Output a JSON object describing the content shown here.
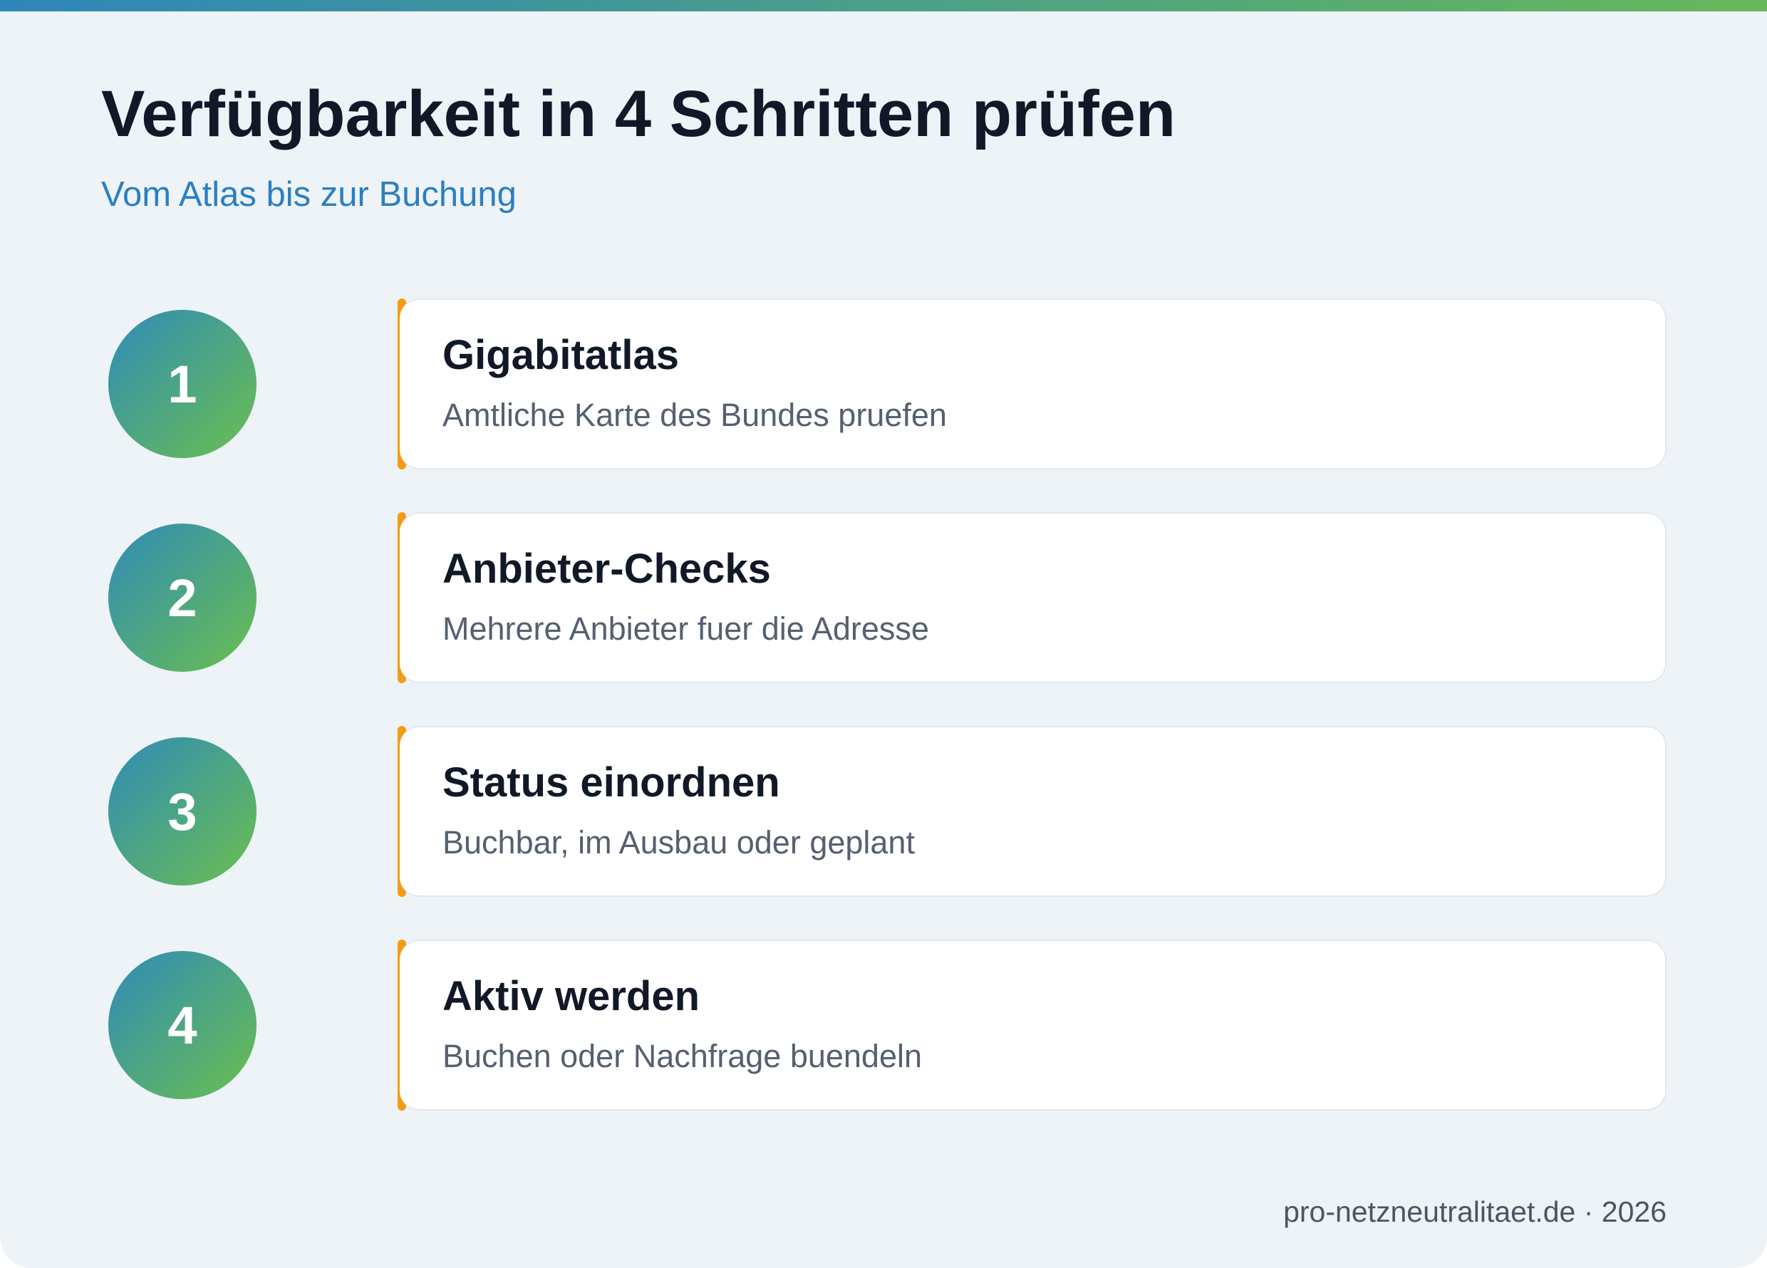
{
  "header": {
    "title": "Verfügbarkeit in 4 Schritten prüfen",
    "subtitle": "Vom Atlas bis zur Buchung"
  },
  "steps": [
    {
      "number": 1,
      "title": "Gigabitatlas",
      "description": "Amtliche Karte des Bundes pruefen"
    },
    {
      "number": 2,
      "title": "Anbieter-Checks",
      "description": "Mehrere Anbieter fuer die Adresse"
    },
    {
      "number": 3,
      "title": "Status einordnen",
      "description": "Buchbar, im Ausbau oder geplant"
    },
    {
      "number": 4,
      "title": "Aktiv werden",
      "description": "Buchen oder Nachfrage buendeln"
    }
  ],
  "footer": "pro-netzneutralitaet.de · 2026"
}
